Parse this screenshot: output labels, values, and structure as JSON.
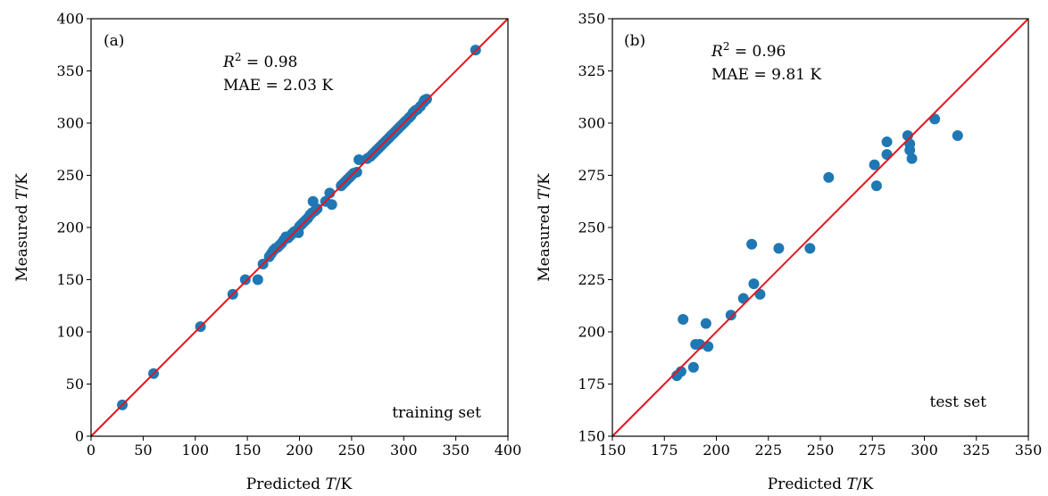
{
  "chart_data": [
    {
      "type": "scatter",
      "panel_label": "(a)",
      "xlabel_prefix": "Predicted ",
      "xlabel_var": "T",
      "xlabel_suffix": "/K",
      "ylabel_prefix": "Measured ",
      "ylabel_var": "T",
      "ylabel_suffix": "/K",
      "xlim": [
        0,
        400
      ],
      "ylim": [
        0,
        400
      ],
      "xticks": [
        "0",
        "50",
        "100",
        "150",
        "200",
        "250",
        "300",
        "350",
        "400"
      ],
      "yticks": [
        "0",
        "50",
        "100",
        "150",
        "200",
        "250",
        "300",
        "350",
        "400"
      ],
      "xtick_values": [
        0,
        50,
        100,
        150,
        200,
        250,
        300,
        350,
        400
      ],
      "ytick_values": [
        0,
        50,
        100,
        150,
        200,
        250,
        300,
        350,
        400
      ],
      "r2_var": "R",
      "r2_sup": "2",
      "r2_text": " = 0.98",
      "mae_text": "MAE = 2.03 K",
      "set_label": "training set",
      "fit_line": [
        [
          0,
          0
        ],
        [
          400,
          400
        ]
      ],
      "colors": {
        "points": "#1f77b4",
        "line": "#e8141c"
      },
      "grid": false,
      "points": [
        [
          30,
          30
        ],
        [
          60,
          60
        ],
        [
          105,
          105
        ],
        [
          136,
          136
        ],
        [
          148,
          150
        ],
        [
          160,
          150
        ],
        [
          165,
          165
        ],
        [
          171,
          172
        ],
        [
          173,
          175
        ],
        [
          175,
          178
        ],
        [
          177,
          180
        ],
        [
          179,
          181
        ],
        [
          181,
          183
        ],
        [
          183,
          185
        ],
        [
          185,
          188
        ],
        [
          187,
          191
        ],
        [
          189,
          190
        ],
        [
          191,
          192
        ],
        [
          193,
          194
        ],
        [
          195,
          196
        ],
        [
          197,
          197
        ],
        [
          199,
          195
        ],
        [
          200,
          201
        ],
        [
          202,
          203
        ],
        [
          204,
          205
        ],
        [
          206,
          207
        ],
        [
          208,
          209
        ],
        [
          210,
          212
        ],
        [
          212,
          214
        ],
        [
          213,
          225
        ],
        [
          215,
          216
        ],
        [
          217,
          218
        ],
        [
          225,
          225
        ],
        [
          229,
          233
        ],
        [
          231,
          222
        ],
        [
          240,
          240
        ],
        [
          242,
          242
        ],
        [
          244,
          244
        ],
        [
          246,
          246
        ],
        [
          248,
          248
        ],
        [
          250,
          250
        ],
        [
          252,
          252
        ],
        [
          255,
          253
        ],
        [
          257,
          265
        ],
        [
          265,
          266
        ],
        [
          268,
          268
        ],
        [
          270,
          270
        ],
        [
          272,
          272
        ],
        [
          274,
          274
        ],
        [
          276,
          276
        ],
        [
          278,
          278
        ],
        [
          280,
          280
        ],
        [
          282,
          282
        ],
        [
          284,
          284
        ],
        [
          286,
          286
        ],
        [
          288,
          288
        ],
        [
          290,
          290
        ],
        [
          292,
          292
        ],
        [
          294,
          294
        ],
        [
          296,
          296
        ],
        [
          298,
          298
        ],
        [
          300,
          300
        ],
        [
          302,
          302
        ],
        [
          305,
          305
        ],
        [
          307,
          307
        ],
        [
          309,
          310
        ],
        [
          311,
          312
        ],
        [
          313,
          313
        ],
        [
          316,
          316
        ],
        [
          319,
          320
        ],
        [
          320,
          322
        ],
        [
          322,
          323
        ],
        [
          369,
          370
        ]
      ]
    },
    {
      "type": "scatter",
      "panel_label": "(b)",
      "xlabel_prefix": "Predicted ",
      "xlabel_var": "T",
      "xlabel_suffix": "/K",
      "ylabel_prefix": "Measured ",
      "ylabel_var": "T",
      "ylabel_suffix": "/K",
      "xlim": [
        150,
        350
      ],
      "ylim": [
        150,
        350
      ],
      "xticks": [
        "150",
        "175",
        "200",
        "225",
        "250",
        "275",
        "300",
        "325",
        "350"
      ],
      "yticks": [
        "150",
        "175",
        "200",
        "225",
        "250",
        "275",
        "300",
        "325",
        "350"
      ],
      "xtick_values": [
        150,
        175,
        200,
        225,
        250,
        275,
        300,
        325,
        350
      ],
      "ytick_values": [
        150,
        175,
        200,
        225,
        250,
        275,
        300,
        325,
        350
      ],
      "r2_var": "R",
      "r2_sup": "2",
      "r2_text": " = 0.96",
      "mae_text": "MAE = 9.81 K",
      "set_label": "test set",
      "fit_line": [
        [
          150,
          150
        ],
        [
          350,
          350
        ]
      ],
      "colors": {
        "points": "#1f77b4",
        "line": "#e8141c"
      },
      "grid": false,
      "points": [
        [
          181,
          179
        ],
        [
          183,
          181
        ],
        [
          184,
          206
        ],
        [
          189,
          183
        ],
        [
          190,
          194
        ],
        [
          192,
          194
        ],
        [
          195,
          204
        ],
        [
          196,
          193
        ],
        [
          207,
          208
        ],
        [
          213,
          216
        ],
        [
          217,
          242
        ],
        [
          218,
          223
        ],
        [
          221,
          218
        ],
        [
          230,
          240
        ],
        [
          245,
          240
        ],
        [
          254,
          274
        ],
        [
          276,
          280
        ],
        [
          277,
          270
        ],
        [
          282,
          285
        ],
        [
          282,
          291
        ],
        [
          292,
          294
        ],
        [
          293,
          290
        ],
        [
          293,
          287
        ],
        [
          294,
          283
        ],
        [
          305,
          302
        ],
        [
          316,
          294
        ]
      ]
    }
  ]
}
